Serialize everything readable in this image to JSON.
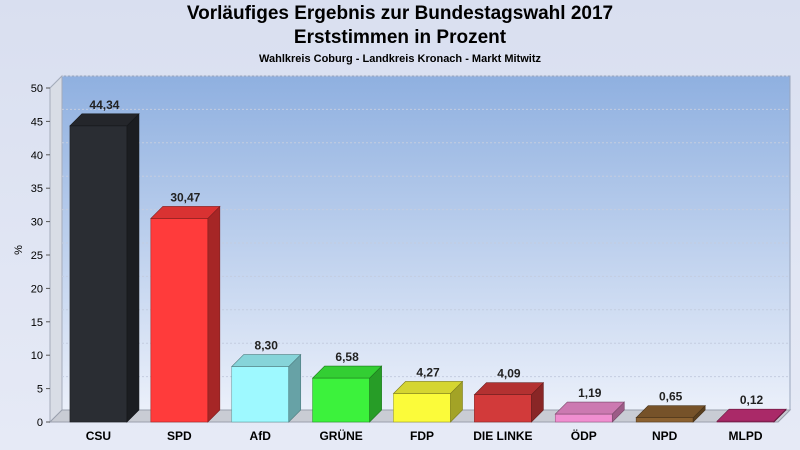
{
  "header": {
    "title_line1": "Vorläufiges Ergebnis zur Bundestagswahl 2017",
    "title_line2": "Erststimmen in Prozent",
    "subtitle": "Wahlkreis Coburg - Landkreis Kronach - Markt Mitwitz"
  },
  "chart_data": {
    "type": "bar",
    "title": "Vorläufiges Ergebnis zur Bundestagswahl 2017\nErststimmen in Prozent",
    "subtitle": "Wahlkreis Coburg - Landkreis Kronach - Markt Mitwitz",
    "xlabel": "",
    "ylabel": "%",
    "ylim": [
      0,
      50
    ],
    "yticks": [
      0,
      5,
      10,
      15,
      20,
      25,
      30,
      35,
      40,
      45,
      50
    ],
    "grid": true,
    "categories": [
      "CSU",
      "SPD",
      "AfD",
      "GRÜNE",
      "FDP",
      "DIE LINKE",
      "ÖDP",
      "NPD",
      "MLPD"
    ],
    "values": [
      44.34,
      30.47,
      8.3,
      6.58,
      4.27,
      4.09,
      1.19,
      0.65,
      0.12
    ],
    "value_labels": [
      "44,34",
      "30,47",
      "8,30",
      "6,58",
      "4,27",
      "4,09",
      "1,19",
      "0,65",
      "0,12"
    ],
    "colors": [
      "#2a2d33",
      "#ff3b3b",
      "#9ef9ff",
      "#3cf23c",
      "#fbfb3a",
      "#d23a3a",
      "#f08ed0",
      "#8b6130",
      "#c8307a"
    ]
  }
}
